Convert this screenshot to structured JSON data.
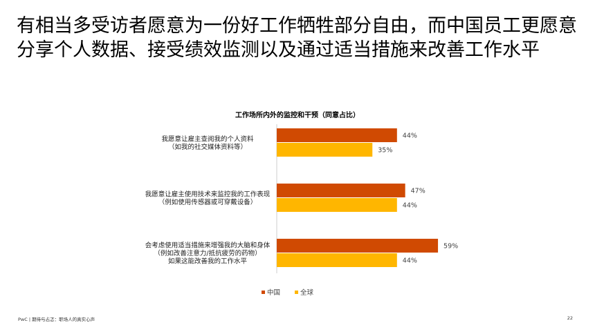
{
  "headline": "有相当多受访者愿意为一份好工作牺牲部分自由，而中国员工更愿意分享个人数据、接受绩效监测以及通过适当措施来改善工作水平",
  "footer": {
    "left": "PwC | 期待与忐忑：职场人的真实心声",
    "page": "22"
  },
  "chart_data": {
    "type": "bar",
    "orientation": "horizontal",
    "title": "工作场所内外的监控和干预（同意占比）",
    "categories": [
      [
        "我愿意让雇主查阅我的个人资料",
        "（如我的社交媒体资料等）"
      ],
      [
        "我愿意让雇主使用技术来监控我的工作表现",
        "（例如使用传感器或可穿戴设备）"
      ],
      [
        "会考虑使用适当措施来增强我的大脑和身体",
        "（例如改善注意力/抵抗疲劳的药物）",
        "如果这能改善我的工作水平"
      ]
    ],
    "series": [
      {
        "name": "中国",
        "color": "#d04a02",
        "values": [
          44,
          47,
          59
        ]
      },
      {
        "name": "全球",
        "color": "#ffb600",
        "values": [
          35,
          44,
          44
        ]
      }
    ],
    "value_suffix": "%",
    "xlim": [
      0,
      100
    ],
    "grid": false,
    "legend": "bottom-center"
  }
}
